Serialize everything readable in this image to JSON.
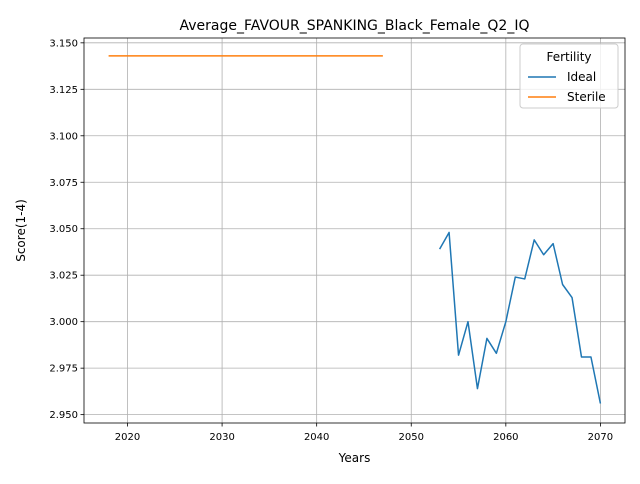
{
  "chart_data": {
    "type": "line",
    "title": "Average_FAVOUR_SPANKING_Black_Female_Q2_IQ",
    "xlabel": "Years",
    "ylabel": "Score(1-4)",
    "xlim": [
      2015.4,
      2072.6
    ],
    "ylim": [
      2.9455,
      3.1526
    ],
    "xticks": [
      2020,
      2030,
      2040,
      2050,
      2060,
      2070
    ],
    "yticks": [
      2.95,
      2.975,
      3.0,
      3.025,
      3.05,
      3.075,
      3.1,
      3.125,
      3.15
    ],
    "grid": true,
    "legend": {
      "title": "Fertility",
      "position": "top-right"
    },
    "series": [
      {
        "name": "Ideal",
        "color": "#1f77b4",
        "x": [
          2053,
          2054,
          2055,
          2056,
          2057,
          2058,
          2059,
          2060,
          2061,
          2062,
          2063,
          2064,
          2065,
          2066,
          2067,
          2068,
          2069,
          2070
        ],
        "y": [
          3.039,
          3.048,
          2.982,
          3.0,
          2.964,
          2.991,
          2.983,
          3.0,
          3.024,
          3.023,
          3.044,
          3.036,
          3.042,
          3.02,
          3.013,
          2.981,
          2.981,
          2.956
        ]
      },
      {
        "name": "Sterile",
        "color": "#ff7f0e",
        "x": [
          2018,
          2047
        ],
        "y": [
          3.143,
          3.143
        ]
      }
    ]
  }
}
